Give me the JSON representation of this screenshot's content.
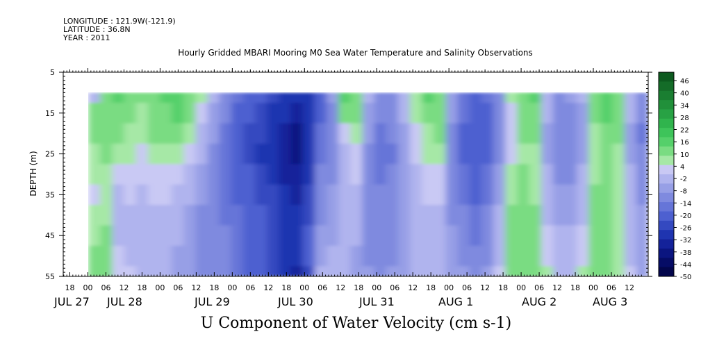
{
  "header": {
    "longitude": "LONGITUDE : 121.9W(-121.9)",
    "latitude": "LATITUDE : 36.8N",
    "year": "YEAR : 2011"
  },
  "chart_data": {
    "type": "heatmap",
    "title": "Hourly Gridded MBARI Mooring M0 Sea Water Temperature and Salinity Observations",
    "xlabel": "U Component of Water Velocity (cm s-1)",
    "ylabel": "DEPTH (m)",
    "ylim": [
      5,
      55
    ],
    "y_inverted": true,
    "y_ticks": [
      5,
      15,
      25,
      35,
      45,
      55
    ],
    "data_depth_range": [
      10,
      55
    ],
    "hour_tick_labels": [
      "18",
      "00",
      "06",
      "12",
      "18",
      "00",
      "06",
      "12",
      "18",
      "00",
      "06",
      "12",
      "18",
      "00",
      "06",
      "12",
      "18",
      "00",
      "06",
      "12",
      "18",
      "00",
      "06",
      "12",
      "18",
      "00",
      "06",
      "12",
      "18",
      "00",
      "06",
      "12"
    ],
    "date_labels": [
      "JUL 27",
      "JUL 28",
      "JUL 29",
      "JUL 30",
      "JUL 31",
      "AUG  1",
      "AUG  2",
      "AUG  3"
    ],
    "colorbar_levels": [
      "46",
      "40",
      "34",
      "28",
      "22",
      "16",
      "10",
      "4",
      "-2",
      "-8",
      "-14",
      "-20",
      "-26",
      "-32",
      "-38",
      "-44",
      "-50"
    ],
    "colorbar_colors": [
      "#0d5a1f",
      "#146c28",
      "#1a7e31",
      "#21903a",
      "#28a244",
      "#30b44d",
      "#3ec45a",
      "#55d06a",
      "#7adc82",
      "#a6e8a6",
      "#c9c9f4",
      "#b0b4ee",
      "#979fe6",
      "#7f8adf",
      "#6675d8",
      "#4d60d0",
      "#3449c0",
      "#1f34b0",
      "#14229a",
      "#0b1580",
      "#060c66",
      "#03064c"
    ],
    "field_rows": [
      {
        "depth": 10,
        "values": [
          -4,
          12,
          14,
          10,
          8,
          12,
          14,
          16,
          12,
          6,
          -6,
          -14,
          -20,
          -24,
          -26,
          -30,
          -34,
          -36,
          -32,
          -24,
          -10,
          14,
          12,
          -6,
          -14,
          -12,
          -4,
          6,
          14,
          12,
          -8,
          -18,
          -22,
          -20,
          -12,
          4,
          12,
          16,
          -4,
          -14,
          -10,
          -6,
          12,
          16,
          12,
          -4,
          -14
        ]
      },
      {
        "depth": 15,
        "values": [
          8,
          12,
          12,
          8,
          6,
          10,
          12,
          14,
          10,
          2,
          -8,
          -16,
          -22,
          -26,
          -28,
          -32,
          -36,
          -40,
          -34,
          -22,
          -12,
          8,
          10,
          -8,
          -16,
          -14,
          -6,
          4,
          10,
          10,
          -10,
          -20,
          -24,
          -22,
          -14,
          2,
          10,
          12,
          -6,
          -14,
          -12,
          -8,
          10,
          14,
          10,
          -6,
          -16
        ]
      },
      {
        "depth": 20,
        "values": [
          10,
          10,
          8,
          6,
          4,
          8,
          10,
          10,
          6,
          -2,
          -10,
          -18,
          -24,
          -28,
          -30,
          -32,
          -38,
          -42,
          -34,
          -20,
          -14,
          2,
          6,
          -10,
          -18,
          -16,
          -8,
          2,
          6,
          8,
          -12,
          -22,
          -26,
          -24,
          -14,
          0,
          8,
          8,
          -8,
          -16,
          -14,
          -10,
          6,
          12,
          8,
          -8,
          -18
        ]
      },
      {
        "depth": 25,
        "values": [
          6,
          8,
          4,
          4,
          2,
          6,
          6,
          6,
          2,
          -6,
          -12,
          -18,
          -24,
          -28,
          -32,
          -34,
          -40,
          -42,
          -34,
          -18,
          -14,
          -2,
          2,
          -12,
          -18,
          -18,
          -10,
          0,
          4,
          4,
          -14,
          -22,
          -26,
          -24,
          -12,
          2,
          6,
          4,
          -8,
          -14,
          -14,
          -8,
          4,
          10,
          6,
          -8,
          -16
        ]
      },
      {
        "depth": 30,
        "values": [
          4,
          6,
          0,
          2,
          0,
          2,
          2,
          2,
          -2,
          -8,
          -14,
          -18,
          -22,
          -26,
          -30,
          -32,
          -38,
          -40,
          -32,
          -16,
          -12,
          -4,
          0,
          -12,
          -18,
          -16,
          -10,
          -2,
          2,
          2,
          -14,
          -20,
          -24,
          -20,
          -10,
          4,
          8,
          4,
          -6,
          -12,
          -12,
          -6,
          6,
          10,
          6,
          -6,
          -14
        ]
      },
      {
        "depth": 35,
        "values": [
          2,
          4,
          -2,
          0,
          -2,
          0,
          0,
          -2,
          -6,
          -10,
          -14,
          -18,
          -22,
          -24,
          -28,
          -30,
          -36,
          -38,
          -30,
          -14,
          -10,
          -4,
          -2,
          -12,
          -16,
          -16,
          -10,
          -4,
          0,
          0,
          -14,
          -18,
          -22,
          -18,
          -8,
          6,
          10,
          6,
          -4,
          -10,
          -10,
          -4,
          8,
          10,
          6,
          -4,
          -12
        ]
      },
      {
        "depth": 40,
        "values": [
          4,
          6,
          -4,
          -2,
          -4,
          -2,
          -2,
          -4,
          -8,
          -12,
          -16,
          -18,
          -20,
          -24,
          -26,
          -30,
          -34,
          -36,
          -28,
          -12,
          -10,
          -6,
          -4,
          -12,
          -16,
          -14,
          -10,
          -4,
          -2,
          -2,
          -12,
          -16,
          -20,
          -16,
          -6,
          8,
          10,
          8,
          -2,
          -8,
          -8,
          -2,
          10,
          10,
          4,
          -4,
          -10
        ]
      },
      {
        "depth": 45,
        "values": [
          6,
          8,
          -2,
          -2,
          -4,
          -4,
          -4,
          -6,
          -10,
          -12,
          -14,
          -16,
          -18,
          -22,
          -26,
          -30,
          -34,
          -36,
          -26,
          -10,
          -8,
          -6,
          -6,
          -12,
          -14,
          -14,
          -10,
          -6,
          -4,
          -4,
          -10,
          -14,
          -18,
          -14,
          -4,
          10,
          10,
          8,
          0,
          -6,
          -6,
          0,
          10,
          10,
          4,
          -2,
          -10
        ]
      },
      {
        "depth": 50,
        "values": [
          8,
          10,
          0,
          -2,
          -4,
          -4,
          -6,
          -8,
          -10,
          -12,
          -14,
          -16,
          -18,
          -22,
          -26,
          -30,
          -34,
          -36,
          -26,
          -8,
          -6,
          -6,
          -8,
          -12,
          -14,
          -12,
          -10,
          -6,
          -6,
          -4,
          -10,
          -12,
          -16,
          -12,
          -2,
          10,
          10,
          8,
          2,
          -4,
          -4,
          2,
          10,
          10,
          4,
          -2,
          -10
        ]
      },
      {
        "depth": 55,
        "values": [
          10,
          10,
          2,
          0,
          -2,
          -4,
          -6,
          -8,
          -10,
          -12,
          -14,
          -16,
          -18,
          -22,
          -26,
          -30,
          -36,
          -38,
          -28,
          -6,
          -4,
          -6,
          -8,
          -10,
          -12,
          -10,
          -8,
          -6,
          -6,
          -4,
          -8,
          -10,
          -14,
          -10,
          0,
          12,
          12,
          10,
          4,
          -2,
          -2,
          4,
          12,
          12,
          6,
          0,
          -8
        ]
      }
    ]
  }
}
